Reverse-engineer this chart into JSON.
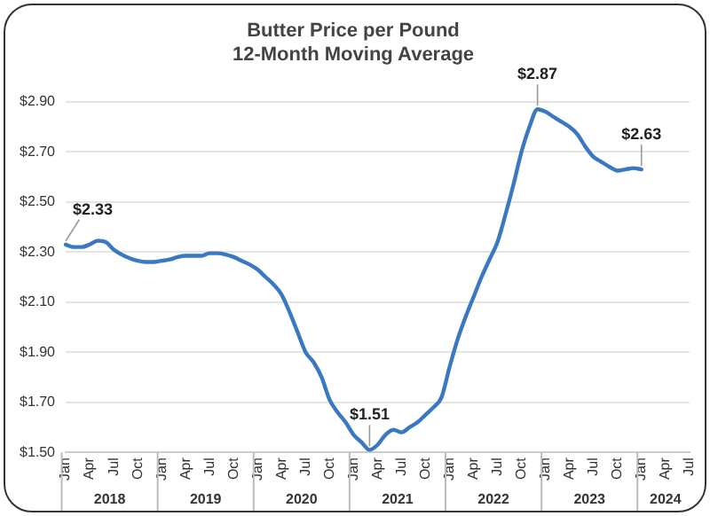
{
  "chart_data": {
    "type": "line",
    "title": "Butter Price per Pound\n12-Month Moving Average",
    "categories": [
      "Jan",
      null,
      null,
      "Apr",
      null,
      null,
      "Jul",
      null,
      null,
      "Oct",
      null,
      null,
      "Jan",
      null,
      null,
      "Apr",
      null,
      null,
      "Jul",
      null,
      null,
      "Oct",
      null,
      null,
      "Jan",
      null,
      null,
      "Apr",
      null,
      null,
      "Jul",
      null,
      null,
      "Oct",
      null,
      null,
      "Jan",
      null,
      null,
      "Apr",
      null,
      null,
      "Jul",
      null,
      null,
      "Oct",
      null,
      null,
      "Jan",
      null,
      null,
      "Apr",
      null,
      null,
      "Jul",
      null,
      null,
      "Oct",
      null,
      null,
      "Jan",
      null,
      null,
      "Apr",
      null,
      null,
      "Jul",
      null,
      null,
      "Oct",
      null,
      null,
      "Jan",
      null,
      null,
      "Apr",
      null,
      null,
      "Jul"
    ],
    "series": [
      {
        "color": "#3a78c2",
        "values": [
          2.33,
          2.32,
          2.32,
          2.33,
          2.345,
          2.34,
          2.31,
          2.29,
          2.275,
          2.265,
          2.26,
          2.26,
          2.265,
          2.27,
          2.28,
          2.285,
          2.285,
          2.285,
          2.295,
          2.295,
          2.29,
          2.28,
          2.265,
          2.25,
          2.23,
          2.2,
          2.17,
          2.13,
          2.06,
          1.98,
          1.9,
          1.86,
          1.8,
          1.71,
          1.66,
          1.62,
          1.57,
          1.54,
          1.51,
          1.53,
          1.57,
          1.59,
          1.58,
          1.6,
          1.62,
          1.65,
          1.68,
          1.72,
          1.84,
          1.95,
          2.04,
          2.12,
          2.2,
          2.27,
          2.34,
          2.45,
          2.57,
          2.7,
          2.8,
          2.87,
          2.86,
          2.84,
          2.82,
          2.8,
          2.77,
          2.72,
          2.68,
          2.66,
          2.64,
          2.625,
          2.63,
          2.635,
          2.63,
          null,
          null,
          null,
          null,
          null,
          null
        ],
        "value_labels": [
          "$2.33",
          null,
          null,
          null,
          null,
          null,
          null,
          null,
          null,
          null,
          null,
          null,
          null,
          null,
          null,
          null,
          null,
          null,
          null,
          null,
          null,
          null,
          null,
          null,
          null,
          null,
          null,
          null,
          null,
          null,
          null,
          null,
          null,
          null,
          null,
          null,
          null,
          null,
          "$1.51",
          null,
          null,
          null,
          null,
          null,
          null,
          null,
          null,
          null,
          null,
          null,
          null,
          null,
          null,
          null,
          null,
          null,
          null,
          null,
          null,
          "$2.87",
          null,
          null,
          null,
          null,
          null,
          null,
          null,
          null,
          null,
          null,
          null,
          null,
          "$2.63",
          null,
          null,
          null,
          null,
          null,
          null
        ]
      }
    ],
    "ylim": [
      1.5,
      2.9
    ],
    "yticks": [
      {
        "value": 1.5,
        "label": "$1.50"
      },
      {
        "value": 1.7,
        "label": "$1.70"
      },
      {
        "value": 1.9,
        "label": "$1.90"
      },
      {
        "value": 2.1,
        "label": "$2.10"
      },
      {
        "value": 2.3,
        "label": "$2.30"
      },
      {
        "value": 2.5,
        "label": "$2.50"
      },
      {
        "value": 2.7,
        "label": "$2.70"
      },
      {
        "value": 2.9,
        "label": "$2.90"
      }
    ],
    "annotations": [
      "2018",
      "2019",
      "2020",
      "2021",
      "2022",
      "2023",
      "2024"
    ],
    "grid": "y",
    "legend": false,
    "marker": "none",
    "line_style": "solid"
  }
}
